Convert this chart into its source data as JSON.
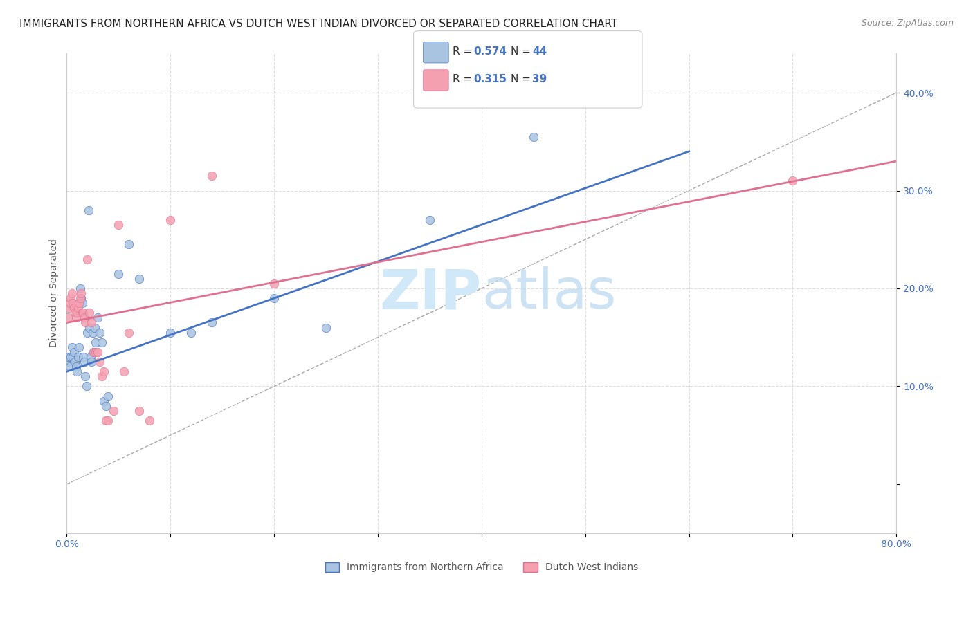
{
  "title": "IMMIGRANTS FROM NORTHERN AFRICA VS DUTCH WEST INDIAN DIVORCED OR SEPARATED CORRELATION CHART",
  "source": "Source: ZipAtlas.com",
  "ylabel": "Divorced or Separated",
  "legend_label_blue": "Immigrants from Northern Africa",
  "legend_label_pink": "Dutch West Indians",
  "blue_color": "#a8c4e0",
  "pink_color": "#f4a0b0",
  "blue_line_color": "#4472c4",
  "pink_line_color": "#e07090",
  "blue_r_color": "#4472c4",
  "pink_r_color": "#e07090",
  "blue_scatter": [
    [
      0.001,
      0.125
    ],
    [
      0.002,
      0.13
    ],
    [
      0.003,
      0.12
    ],
    [
      0.004,
      0.13
    ],
    [
      0.005,
      0.14
    ],
    [
      0.006,
      0.13
    ],
    [
      0.007,
      0.135
    ],
    [
      0.008,
      0.125
    ],
    [
      0.009,
      0.12
    ],
    [
      0.01,
      0.115
    ],
    [
      0.011,
      0.13
    ],
    [
      0.012,
      0.14
    ],
    [
      0.013,
      0.2
    ],
    [
      0.014,
      0.19
    ],
    [
      0.015,
      0.185
    ],
    [
      0.016,
      0.13
    ],
    [
      0.017,
      0.125
    ],
    [
      0.018,
      0.11
    ],
    [
      0.019,
      0.1
    ],
    [
      0.02,
      0.155
    ],
    [
      0.021,
      0.28
    ],
    [
      0.022,
      0.16
    ],
    [
      0.023,
      0.13
    ],
    [
      0.024,
      0.125
    ],
    [
      0.025,
      0.155
    ],
    [
      0.026,
      0.135
    ],
    [
      0.027,
      0.16
    ],
    [
      0.028,
      0.145
    ],
    [
      0.03,
      0.17
    ],
    [
      0.032,
      0.155
    ],
    [
      0.034,
      0.145
    ],
    [
      0.036,
      0.085
    ],
    [
      0.038,
      0.08
    ],
    [
      0.04,
      0.09
    ],
    [
      0.05,
      0.215
    ],
    [
      0.06,
      0.245
    ],
    [
      0.07,
      0.21
    ],
    [
      0.1,
      0.155
    ],
    [
      0.12,
      0.155
    ],
    [
      0.14,
      0.165
    ],
    [
      0.2,
      0.19
    ],
    [
      0.25,
      0.16
    ],
    [
      0.35,
      0.27
    ],
    [
      0.45,
      0.355
    ]
  ],
  "pink_scatter": [
    [
      0.001,
      0.17
    ],
    [
      0.002,
      0.18
    ],
    [
      0.003,
      0.185
    ],
    [
      0.004,
      0.19
    ],
    [
      0.005,
      0.195
    ],
    [
      0.006,
      0.185
    ],
    [
      0.007,
      0.18
    ],
    [
      0.008,
      0.175
    ],
    [
      0.009,
      0.17
    ],
    [
      0.01,
      0.175
    ],
    [
      0.011,
      0.18
    ],
    [
      0.012,
      0.185
    ],
    [
      0.013,
      0.19
    ],
    [
      0.014,
      0.195
    ],
    [
      0.015,
      0.175
    ],
    [
      0.016,
      0.175
    ],
    [
      0.017,
      0.17
    ],
    [
      0.018,
      0.165
    ],
    [
      0.02,
      0.23
    ],
    [
      0.022,
      0.175
    ],
    [
      0.024,
      0.165
    ],
    [
      0.026,
      0.135
    ],
    [
      0.028,
      0.135
    ],
    [
      0.03,
      0.135
    ],
    [
      0.032,
      0.125
    ],
    [
      0.034,
      0.11
    ],
    [
      0.036,
      0.115
    ],
    [
      0.038,
      0.065
    ],
    [
      0.04,
      0.065
    ],
    [
      0.045,
      0.075
    ],
    [
      0.05,
      0.265
    ],
    [
      0.055,
      0.115
    ],
    [
      0.06,
      0.155
    ],
    [
      0.07,
      0.075
    ],
    [
      0.08,
      0.065
    ],
    [
      0.1,
      0.27
    ],
    [
      0.14,
      0.315
    ],
    [
      0.2,
      0.205
    ],
    [
      0.7,
      0.31
    ]
  ],
  "blue_line_x": [
    0.0,
    0.6
  ],
  "blue_line_y": [
    0.115,
    0.34
  ],
  "pink_line_x": [
    0.0,
    0.8
  ],
  "pink_line_y": [
    0.165,
    0.33
  ],
  "diag_line_x": [
    0.0,
    0.8
  ],
  "diag_line_y": [
    0.0,
    0.4
  ],
  "xlim": [
    0.0,
    0.8
  ],
  "ylim": [
    -0.05,
    0.44
  ],
  "xtick_positions": [
    0.0,
    0.1,
    0.2,
    0.3,
    0.4,
    0.5,
    0.6,
    0.7,
    0.8
  ],
  "xtick_labels": [
    "0.0%",
    "",
    "",
    "",
    "",
    "",
    "",
    "",
    "80.0%"
  ],
  "ytick_vals": [
    0.0,
    0.1,
    0.2,
    0.3,
    0.4
  ],
  "ytick_labels": [
    "",
    "10.0%",
    "20.0%",
    "30.0%",
    "40.0%"
  ],
  "watermark_zip": "ZIP",
  "watermark_atlas": "atlas",
  "watermark_color": "#d0e8f8",
  "title_fontsize": 11,
  "source_fontsize": 9,
  "axis_label_fontsize": 10,
  "tick_fontsize": 10
}
